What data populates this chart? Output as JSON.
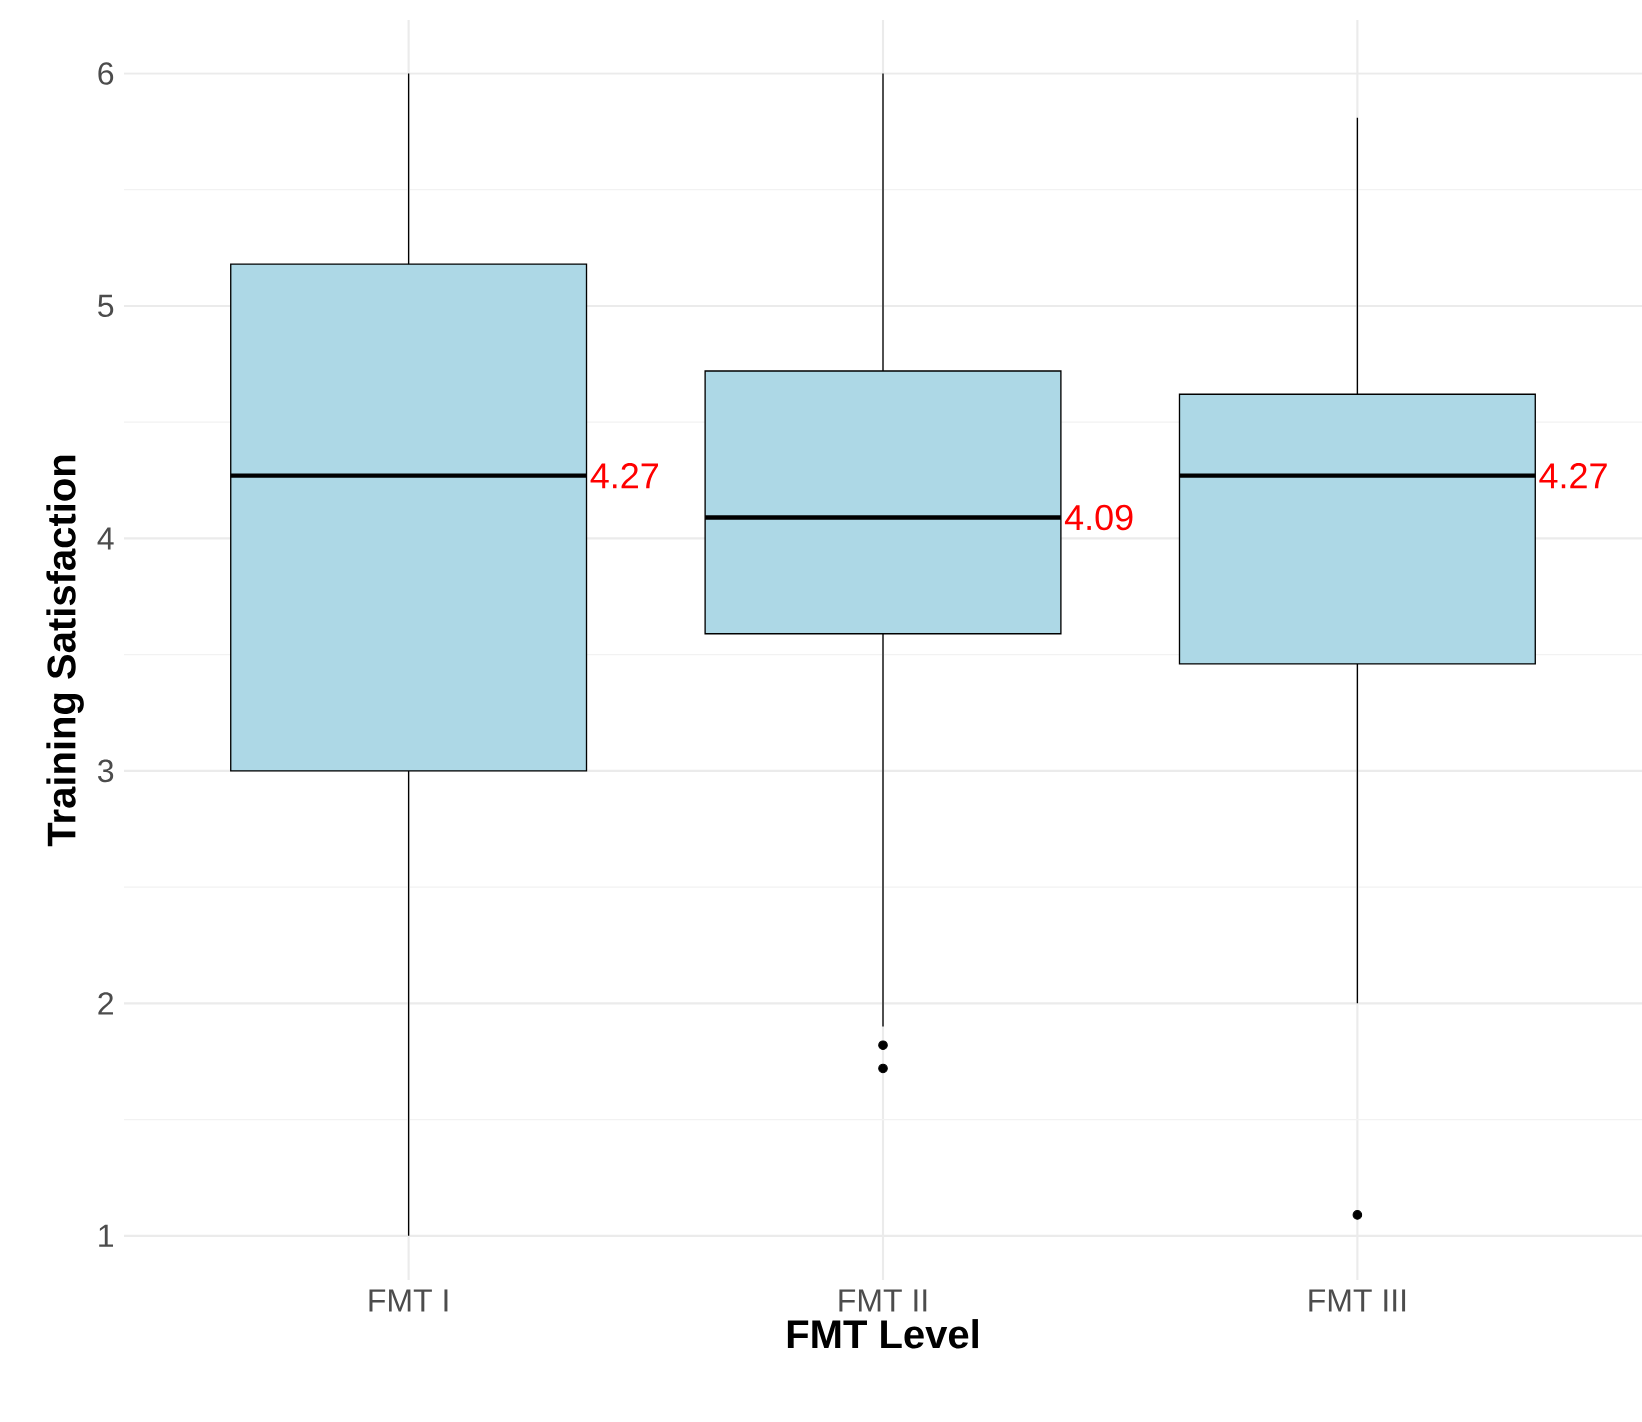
{
  "chart_data": {
    "type": "box",
    "xlabel": "FMT Level",
    "ylabel": "Training Satisfaction",
    "categories": [
      "FMT I",
      "FMT II",
      "FMT III"
    ],
    "boxes": [
      {
        "low": 1.0,
        "q1": 3.0,
        "median": 4.27,
        "q3": 5.18,
        "high": 6.0
      },
      {
        "low": 1.9,
        "q1": 3.59,
        "median": 4.09,
        "q3": 4.72,
        "high": 6.0,
        "outliers": [
          1.82,
          1.72
        ]
      },
      {
        "low": 2.0,
        "q1": 3.46,
        "median": 4.27,
        "q3": 4.62,
        "high": 5.81,
        "outliers": [
          1.09
        ]
      }
    ],
    "color": "#add8e6",
    "annotations": [
      "4.27",
      "4.09",
      "4.27"
    ],
    "ylim": [
      0.81,
      6.23
    ],
    "yticks": [
      1,
      2,
      3,
      4,
      5,
      6
    ],
    "grid": true
  }
}
